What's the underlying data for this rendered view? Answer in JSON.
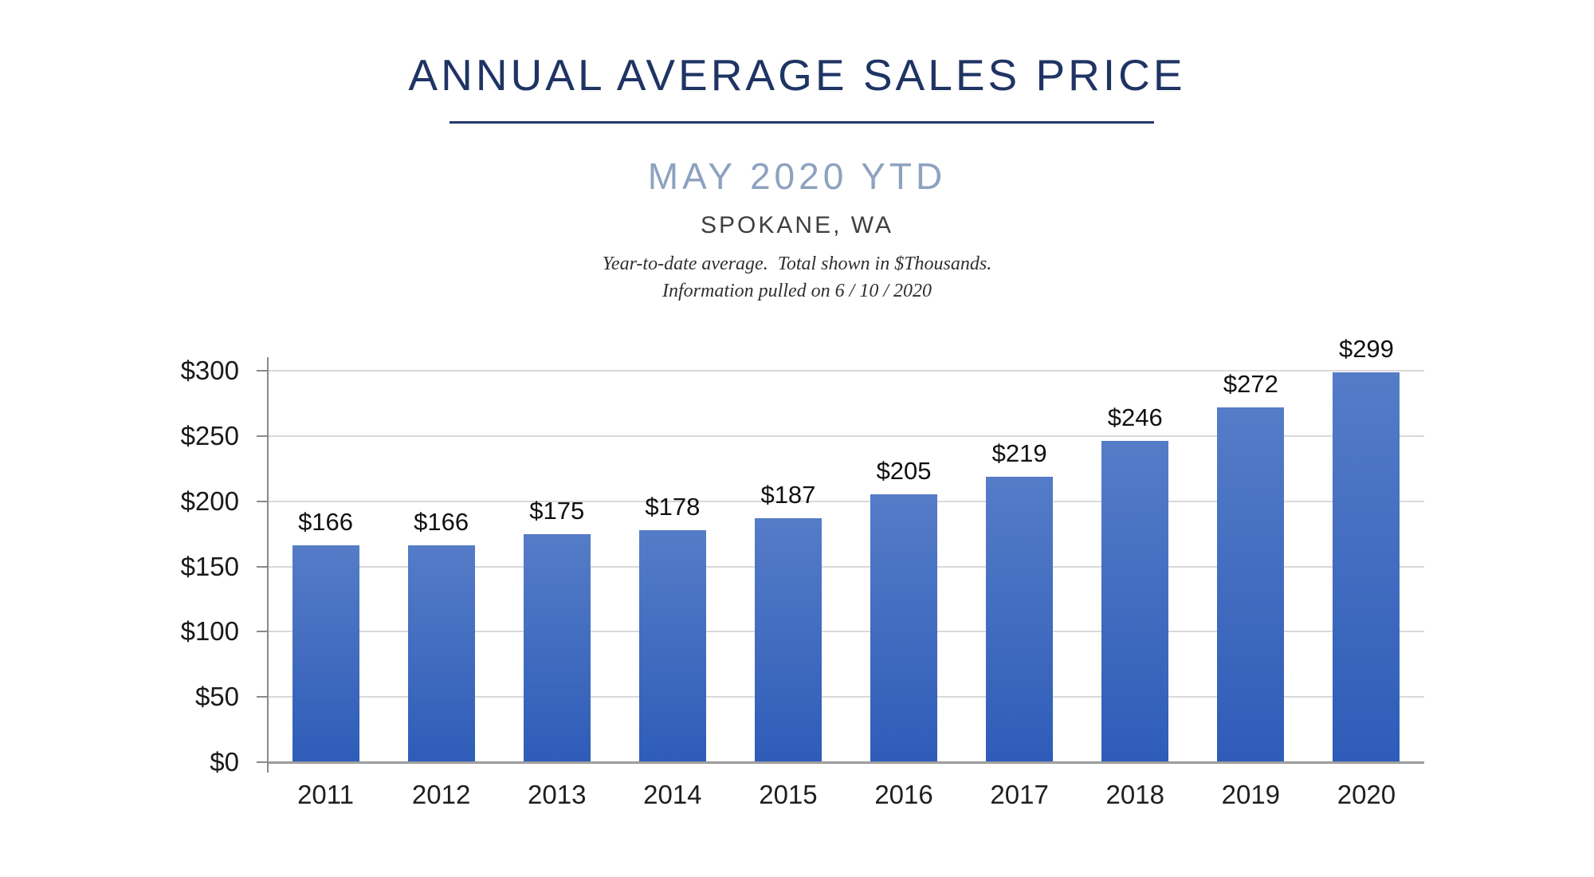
{
  "header": {
    "title": "ANNUAL AVERAGE SALES PRICE",
    "subtitle": "MAY 2020 YTD",
    "location": "SPOKANE, WA",
    "note_line_1": "Year-to-date average.  Total shown in $Thousands.",
    "note_line_2": "Information pulled on 6 / 10 / 2020"
  },
  "colors": {
    "title_navy": "#1f3464",
    "subtitle_blue": "#8da2bf",
    "bar_gradient_top": "#557cc7",
    "bar_gradient_bottom": "#2e5cb8",
    "gridline_gray": "#d9d9d9",
    "axis_gray": "#8a8a8a",
    "label_black": "#111111"
  },
  "chart_data": {
    "type": "bar",
    "title": "ANNUAL AVERAGE SALES PRICE",
    "subtitle": "MAY 2020 YTD",
    "region": "SPOKANE, WA",
    "units": "$Thousands",
    "categories": [
      "2011",
      "2012",
      "2013",
      "2014",
      "2015",
      "2016",
      "2017",
      "2018",
      "2019",
      "2020"
    ],
    "values": [
      166,
      166,
      175,
      178,
      187,
      205,
      219,
      246,
      272,
      299
    ],
    "bar_labels": [
      "$166",
      "$166",
      "$175",
      "$178",
      "$187",
      "$205",
      "$219",
      "$246",
      "$272",
      "$299"
    ],
    "xlabel": "",
    "ylabel": "",
    "ylim": [
      0,
      300
    ],
    "y_ticks": [
      0,
      50,
      100,
      150,
      200,
      250,
      300
    ],
    "y_tick_labels": [
      "$0",
      "$50",
      "$100",
      "$150",
      "$200",
      "$250",
      "$300"
    ],
    "grid": true,
    "legend": "none"
  }
}
